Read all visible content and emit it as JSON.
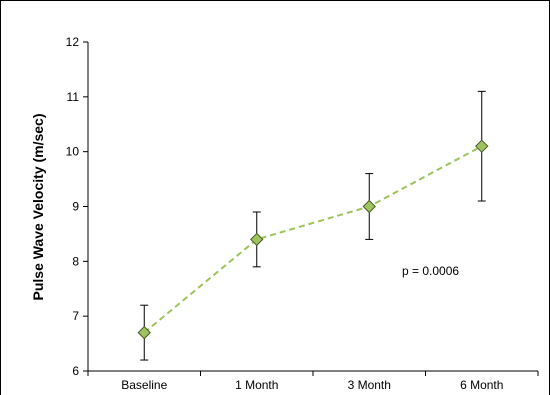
{
  "chart_data": {
    "type": "line",
    "categories": [
      "Baseline",
      "1 Month",
      "3 Month",
      "6 Month"
    ],
    "series": [
      {
        "values": [
          6.7,
          8.4,
          9.0,
          10.1
        ],
        "error_low": [
          6.2,
          7.9,
          8.4,
          9.1
        ],
        "error_high": [
          7.2,
          8.9,
          9.6,
          11.1
        ],
        "color": "#9dc35a",
        "marker_fill": "#9fc35d",
        "marker_stroke": "#4a5a2a"
      }
    ],
    "ylabel": "Pulse Wave Velocity (m/sec)",
    "xlabel": "",
    "ylim": [
      6,
      12
    ],
    "yticks": [
      "6",
      "7",
      "8",
      "9",
      "10",
      "11",
      "12"
    ],
    "annotation": "p = 0.0006",
    "grid": false,
    "legend": "none",
    "line_style": "dashed",
    "marker": "diamond"
  }
}
